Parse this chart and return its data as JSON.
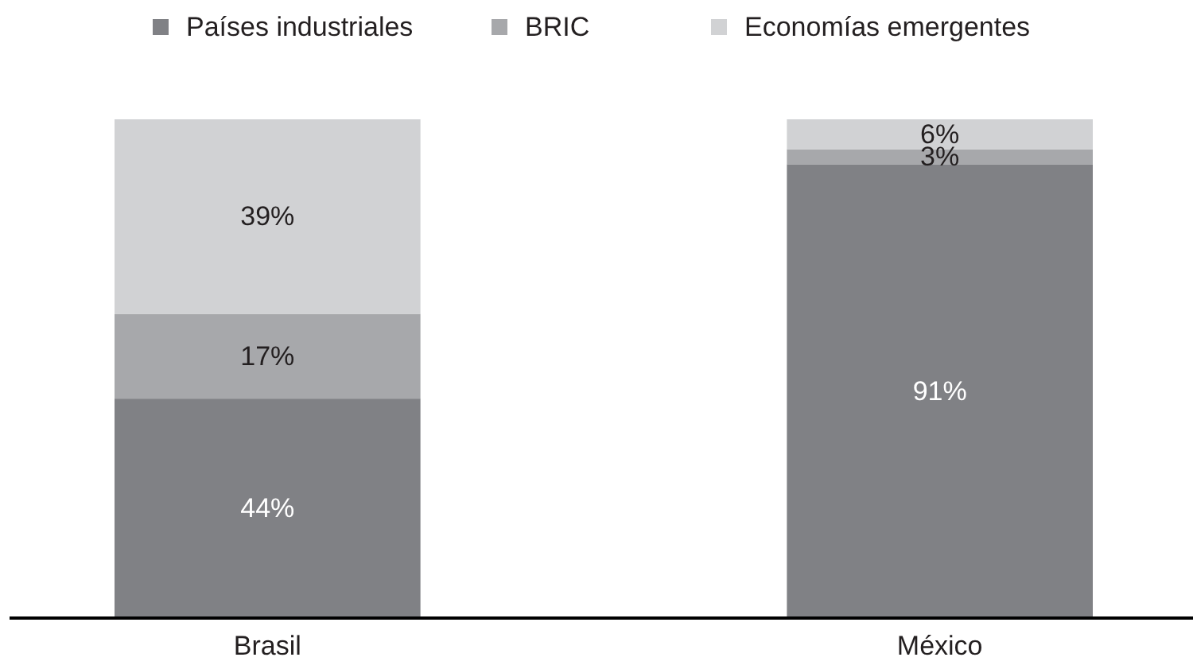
{
  "chart_data": {
    "type": "bar",
    "stacked": true,
    "categories": [
      "Brasil",
      "México"
    ],
    "series": [
      {
        "name": "Países industriales",
        "color": "#808185",
        "values": [
          44,
          91
        ],
        "value_labels": [
          "44%",
          "91%"
        ]
      },
      {
        "name": "BRIC",
        "color": "#a7a8ab",
        "values": [
          17,
          3
        ],
        "value_labels": [
          "17%",
          "3%"
        ]
      },
      {
        "name": "Economías emergentes",
        "color": "#d1d2d4",
        "values": [
          39,
          6
        ],
        "value_labels": [
          "39%",
          "6%"
        ]
      }
    ],
    "tick_labels": "x",
    "legend": "top"
  }
}
